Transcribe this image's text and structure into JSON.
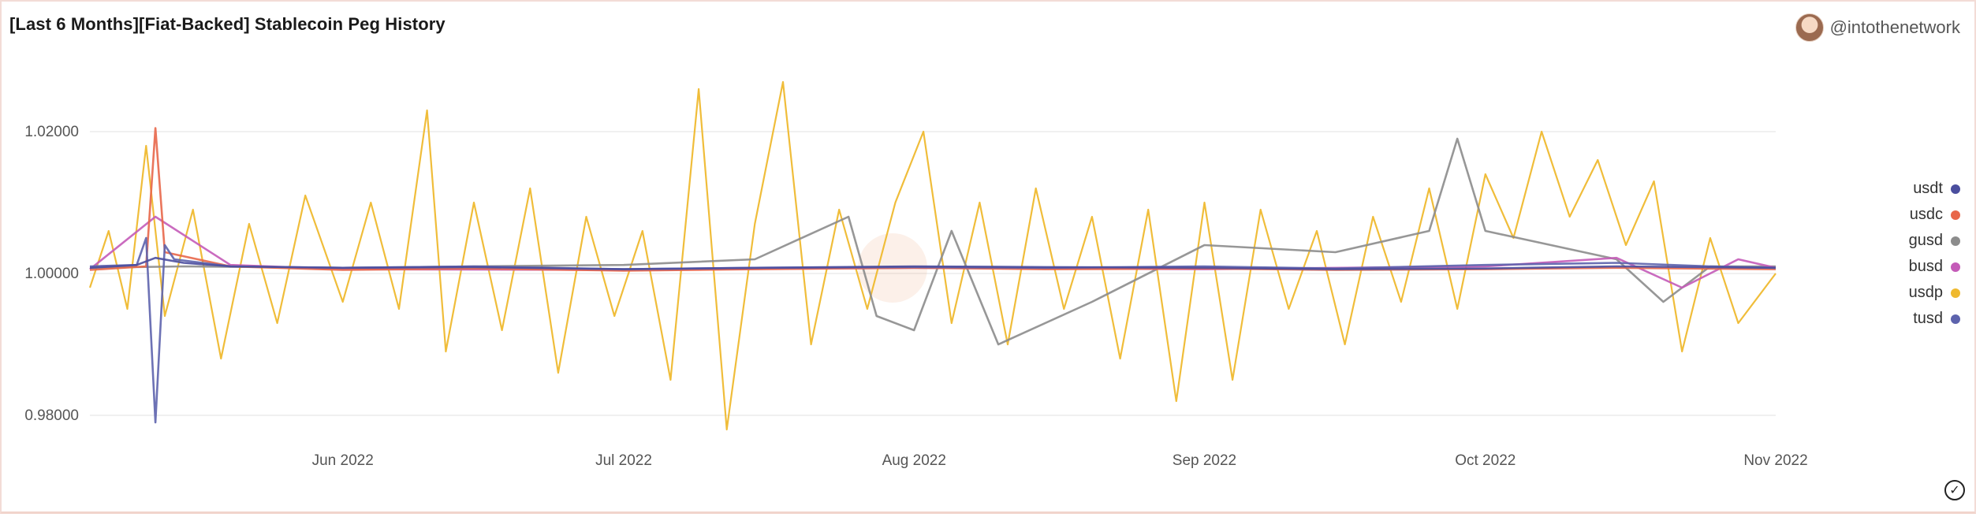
{
  "title": "[Last 6 Months][Fiat-Backed] Stablecoin Peg History",
  "author": {
    "handle": "@intothenetwork",
    "avatar_icon": "avatar-icon"
  },
  "icons": {
    "check": "check-circle-icon"
  },
  "chart_data": {
    "type": "line",
    "title": "[Last 6 Months][Fiat-Backed] Stablecoin Peg History",
    "xlabel": "",
    "ylabel": "",
    "x_range": [
      "2022-05-05",
      "2022-11-01"
    ],
    "ylim": [
      0.975,
      1.025
    ],
    "y_ticks": [
      "1.02000",
      "1.00000",
      "0.98000"
    ],
    "y_tick_values": [
      1.02,
      1.0,
      0.98
    ],
    "x_ticks": [
      "Jun 2022",
      "Jul 2022",
      "Aug 2022",
      "Sep 2022",
      "Oct 2022",
      "Nov 2022"
    ],
    "x_tick_dates": [
      "2022-06-01",
      "2022-07-01",
      "2022-08-01",
      "2022-09-01",
      "2022-10-01",
      "2022-11-01"
    ],
    "grid": "horizontal",
    "legend_position": "right",
    "series": [
      {
        "name": "usdt",
        "color": "#4b4e9e",
        "x": [
          "2022-05-05",
          "2022-05-10",
          "2022-05-12",
          "2022-05-15",
          "2022-05-20",
          "2022-06-01",
          "2022-06-15",
          "2022-07-01",
          "2022-07-15",
          "2022-08-01",
          "2022-08-15",
          "2022-09-01",
          "2022-09-15",
          "2022-10-01",
          "2022-10-15",
          "2022-11-01"
        ],
        "values": [
          1.0008,
          1.0012,
          1.0022,
          1.0015,
          1.001,
          1.0008,
          1.0009,
          1.0006,
          1.0008,
          1.001,
          1.0009,
          1.0008,
          1.0006,
          1.0007,
          1.001,
          1.0008
        ]
      },
      {
        "name": "usdc",
        "color": "#e8674a",
        "x": [
          "2022-05-05",
          "2022-05-11",
          "2022-05-12",
          "2022-05-13",
          "2022-05-20",
          "2022-06-01",
          "2022-06-15",
          "2022-07-01",
          "2022-07-15",
          "2022-08-01",
          "2022-08-15",
          "2022-09-01",
          "2022-09-15",
          "2022-10-01",
          "2022-10-15",
          "2022-11-01"
        ],
        "values": [
          1.0005,
          1.001,
          1.0205,
          1.003,
          1.001,
          1.0005,
          1.0007,
          1.0004,
          1.0006,
          1.0008,
          1.0006,
          1.0007,
          1.0005,
          1.0006,
          1.0008,
          1.0006
        ]
      },
      {
        "name": "gusd",
        "color": "#8c8c8c",
        "x": [
          "2022-05-05",
          "2022-05-15",
          "2022-06-01",
          "2022-06-15",
          "2022-07-01",
          "2022-07-15",
          "2022-07-25",
          "2022-07-28",
          "2022-08-01",
          "2022-08-05",
          "2022-08-10",
          "2022-08-20",
          "2022-09-01",
          "2022-09-15",
          "2022-09-25",
          "2022-09-28",
          "2022-10-01",
          "2022-10-15",
          "2022-10-20",
          "2022-10-25",
          "2022-11-01"
        ],
        "values": [
          1.0008,
          1.001,
          1.0008,
          1.001,
          1.0012,
          1.002,
          1.008,
          0.994,
          0.992,
          1.006,
          0.99,
          0.996,
          1.004,
          1.003,
          1.006,
          1.019,
          1.006,
          1.002,
          0.996,
          1.001,
          1.001
        ]
      },
      {
        "name": "busd",
        "color": "#c45bb8",
        "x": [
          "2022-05-05",
          "2022-05-12",
          "2022-05-20",
          "2022-06-01",
          "2022-07-01",
          "2022-08-01",
          "2022-09-01",
          "2022-10-01",
          "2022-10-15",
          "2022-10-22",
          "2022-10-28",
          "2022-11-01"
        ],
        "values": [
          1.0006,
          1.008,
          1.0012,
          1.0006,
          1.0005,
          1.0008,
          1.0006,
          1.001,
          1.0022,
          0.998,
          1.002,
          1.0008
        ]
      },
      {
        "name": "usdp",
        "color": "#efb92f",
        "x": [
          "2022-05-05",
          "2022-05-07",
          "2022-05-09",
          "2022-05-11",
          "2022-05-13",
          "2022-05-16",
          "2022-05-19",
          "2022-05-22",
          "2022-05-25",
          "2022-05-28",
          "2022-06-01",
          "2022-06-04",
          "2022-06-07",
          "2022-06-10",
          "2022-06-12",
          "2022-06-15",
          "2022-06-18",
          "2022-06-21",
          "2022-06-24",
          "2022-06-27",
          "2022-06-30",
          "2022-07-03",
          "2022-07-06",
          "2022-07-09",
          "2022-07-12",
          "2022-07-15",
          "2022-07-18",
          "2022-07-21",
          "2022-07-24",
          "2022-07-27",
          "2022-07-30",
          "2022-08-02",
          "2022-08-05",
          "2022-08-08",
          "2022-08-11",
          "2022-08-14",
          "2022-08-17",
          "2022-08-20",
          "2022-08-23",
          "2022-08-26",
          "2022-08-29",
          "2022-09-01",
          "2022-09-04",
          "2022-09-07",
          "2022-09-10",
          "2022-09-13",
          "2022-09-16",
          "2022-09-19",
          "2022-09-22",
          "2022-09-25",
          "2022-09-28",
          "2022-10-01",
          "2022-10-04",
          "2022-10-07",
          "2022-10-10",
          "2022-10-13",
          "2022-10-16",
          "2022-10-19",
          "2022-10-22",
          "2022-10-25",
          "2022-10-28",
          "2022-11-01"
        ],
        "values": [
          0.998,
          1.006,
          0.995,
          1.018,
          0.994,
          1.009,
          0.988,
          1.007,
          0.993,
          1.011,
          0.996,
          1.01,
          0.995,
          1.023,
          0.989,
          1.01,
          0.992,
          1.012,
          0.986,
          1.008,
          0.994,
          1.006,
          0.985,
          1.026,
          0.978,
          1.007,
          1.027,
          0.99,
          1.009,
          0.995,
          1.01,
          1.02,
          0.993,
          1.01,
          0.99,
          1.012,
          0.995,
          1.008,
          0.988,
          1.009,
          0.982,
          1.01,
          0.985,
          1.009,
          0.995,
          1.006,
          0.99,
          1.008,
          0.996,
          1.012,
          0.995,
          1.014,
          1.005,
          1.02,
          1.008,
          1.016,
          1.004,
          1.013,
          0.989,
          1.005,
          0.993,
          1.0
        ]
      },
      {
        "name": "tusd",
        "color": "#5d63ad",
        "x": [
          "2022-05-05",
          "2022-05-10",
          "2022-05-11",
          "2022-05-12",
          "2022-05-13",
          "2022-05-14",
          "2022-05-20",
          "2022-06-01",
          "2022-06-15",
          "2022-07-01",
          "2022-07-15",
          "2022-08-01",
          "2022-08-15",
          "2022-09-01",
          "2022-09-15",
          "2022-10-01",
          "2022-10-15",
          "2022-10-25",
          "2022-11-01"
        ],
        "values": [
          1.001,
          1.0012,
          1.005,
          0.979,
          1.004,
          1.002,
          1.001,
          1.0008,
          1.001,
          1.0006,
          1.0008,
          1.0009,
          1.0008,
          1.001,
          1.0007,
          1.0012,
          1.0015,
          1.001,
          1.0008
        ]
      }
    ]
  }
}
